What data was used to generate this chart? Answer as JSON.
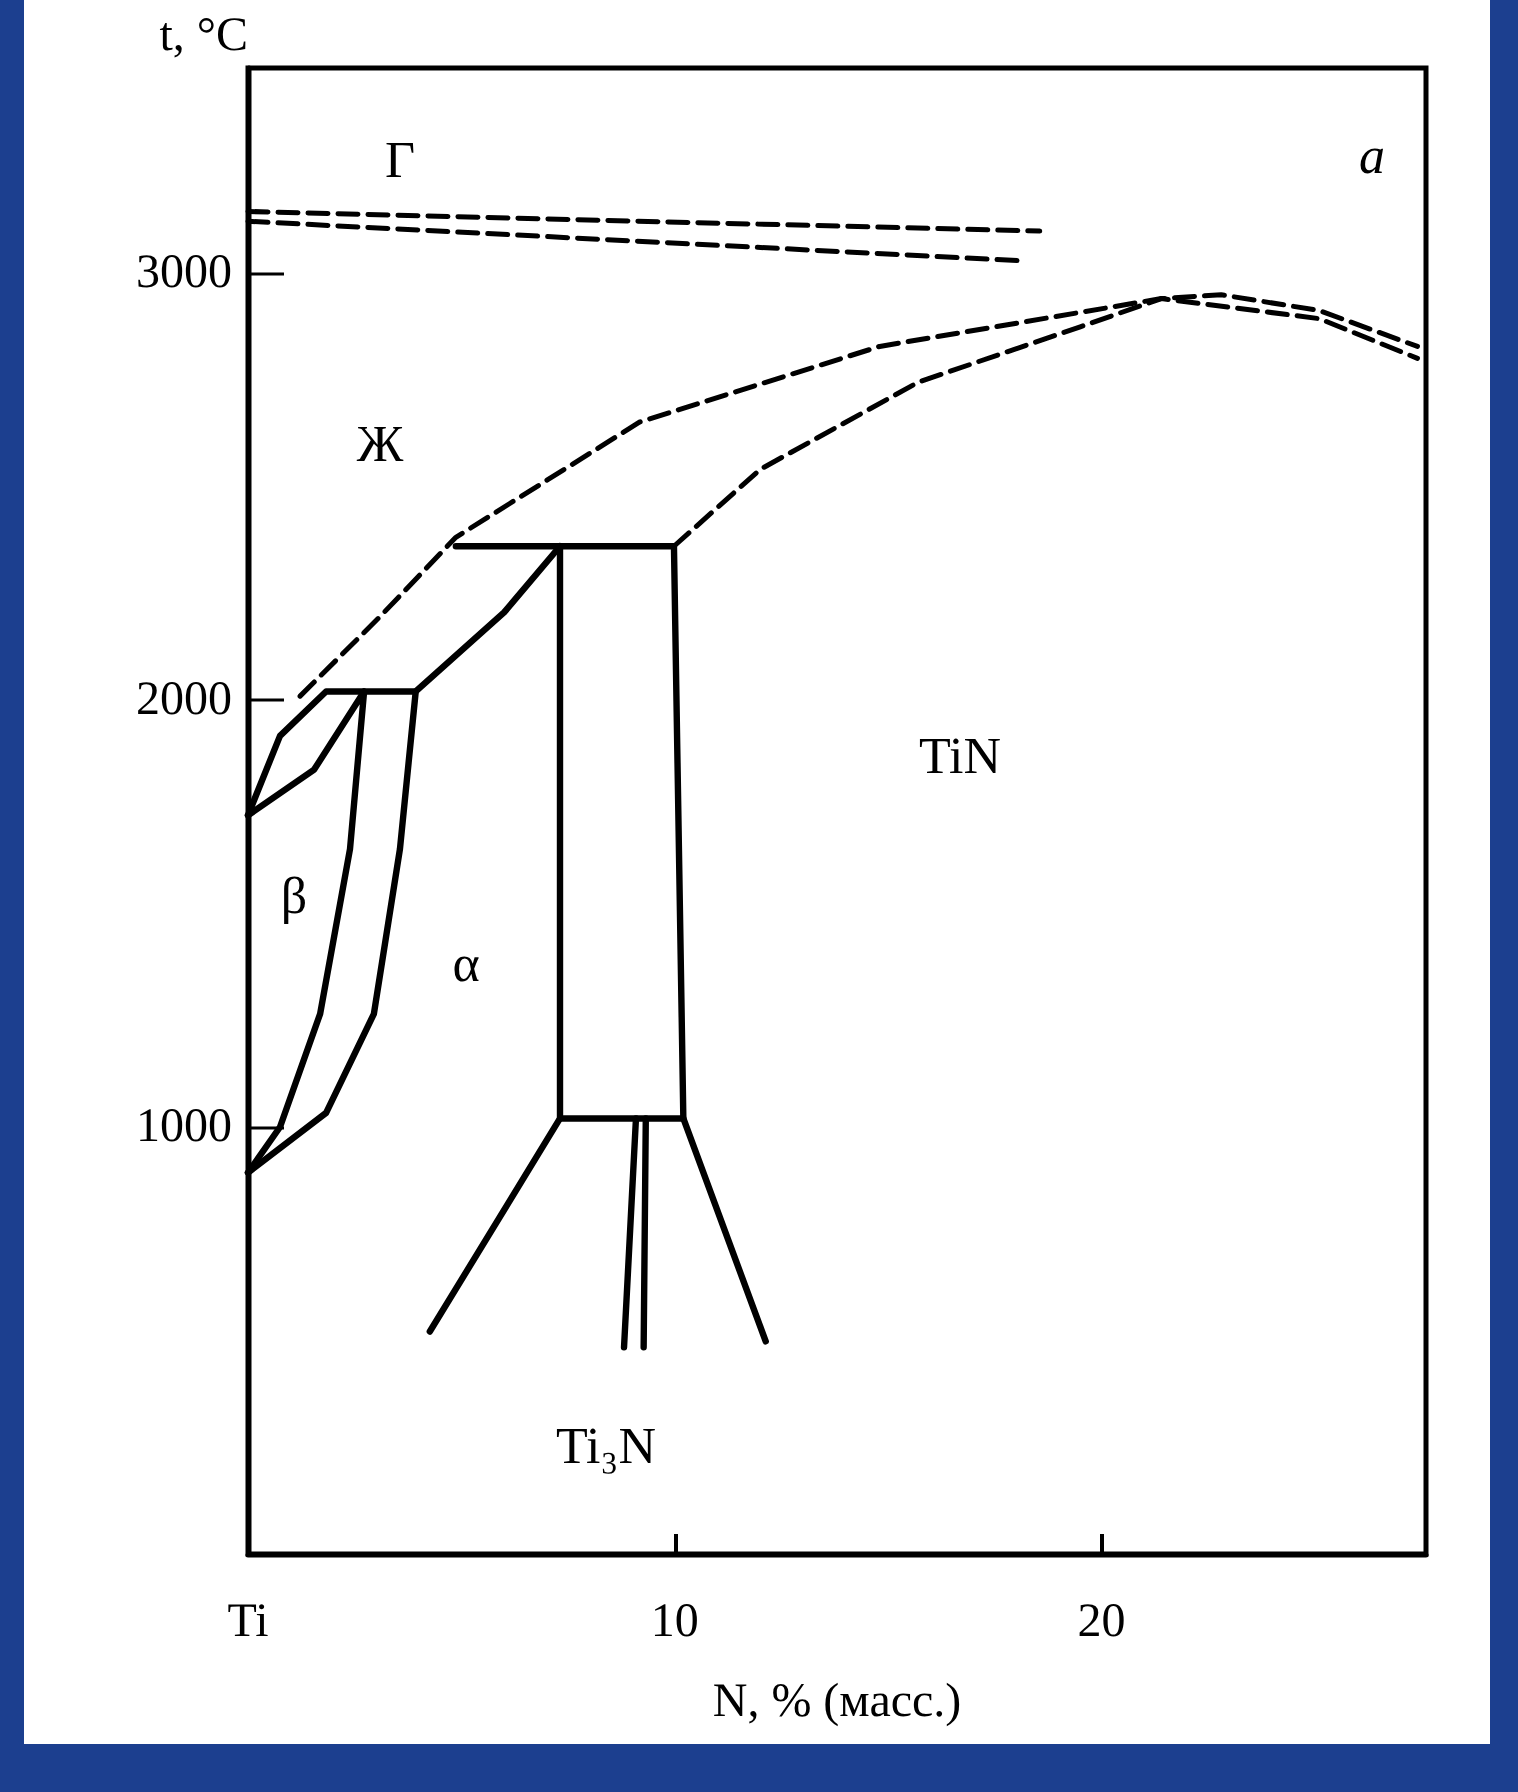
{
  "chart_data": {
    "type": "line",
    "xlabel": "N, % (масс.)",
    "ylabel": "t, °C",
    "xlim": [
      0,
      27.6
    ],
    "ylim": [
      0,
      3480
    ],
    "xticks": [
      {
        "value": 0,
        "label": "Ti"
      },
      10,
      20
    ],
    "yticks": [
      1000,
      2000,
      3000
    ],
    "marker": "none",
    "series": [
      {
        "line_style": "dashed",
        "color": "#000000",
        "x": [
          0,
          18.55
        ],
        "values": [
          3144,
          3098
        ]
      },
      {
        "line_style": "dashed",
        "color": "#000000",
        "x": [
          0,
          18.2
        ],
        "values": [
          3121,
          3028
        ]
      },
      {
        "line_style": "dashed",
        "color": "#000000",
        "x": [
          1.22,
          3.09,
          4.87,
          9.18,
          14.8,
          21.4,
          22.8,
          25.1,
          27.4
        ],
        "values": [
          2009,
          2195,
          2381,
          2651,
          2828,
          2940,
          2949,
          2912,
          2828
        ]
      },
      {
        "line_style": "dashed",
        "color": "#000000",
        "x": [
          9.98,
          12.0,
          15.7,
          19.5,
          21.4,
          25.1,
          27.4
        ],
        "values": [
          2360,
          2540,
          2744,
          2874,
          2940,
          2893,
          2800
        ]
      },
      {
        "line_style": "solid",
        "color": "#000000",
        "x": [
          4.87,
          9.98,
          10.2,
          12.13
        ],
        "values": [
          2360,
          2360,
          1020,
          498
        ]
      },
      {
        "line_style": "solid",
        "color": "#000000",
        "x": [
          4.26,
          7.31,
          7.31
        ],
        "values": [
          521,
          1020,
          2360
        ]
      },
      {
        "line_style": "solid",
        "color": "#000000",
        "x": [
          7.31,
          10.2
        ],
        "values": [
          1020,
          1020
        ]
      },
      {
        "line_style": "solid",
        "color": "#000000",
        "x": [
          0,
          0.75,
          1.83,
          3.93,
          6.0,
          7.31
        ],
        "values": [
          1730,
          1916,
          2020,
          2020,
          2205,
          2360
        ]
      },
      {
        "line_style": "solid",
        "color": "#000000",
        "x": [
          0,
          1.55,
          2.72,
          2.39,
          1.69,
          0.75,
          0
        ],
        "values": [
          1730,
          1837,
          2020,
          1651,
          1265,
          1000,
          893
        ]
      },
      {
        "line_style": "solid",
        "color": "#000000",
        "x": [
          3.93,
          3.56,
          2.95,
          1.83,
          0
        ],
        "values": [
          2020,
          1651,
          1265,
          1033,
          893
        ]
      },
      {
        "line_style": "solid",
        "color": "#000000",
        "x": [
          9.09,
          8.81
        ],
        "values": [
          1020,
          484
        ]
      },
      {
        "line_style": "solid",
        "color": "#000000",
        "x": [
          9.32,
          9.27
        ],
        "values": [
          1020,
          484
        ]
      }
    ],
    "annotations": [
      "Г",
      "a",
      "Ж",
      "β",
      "α",
      "TiN",
      "Ti₃N"
    ]
  }
}
